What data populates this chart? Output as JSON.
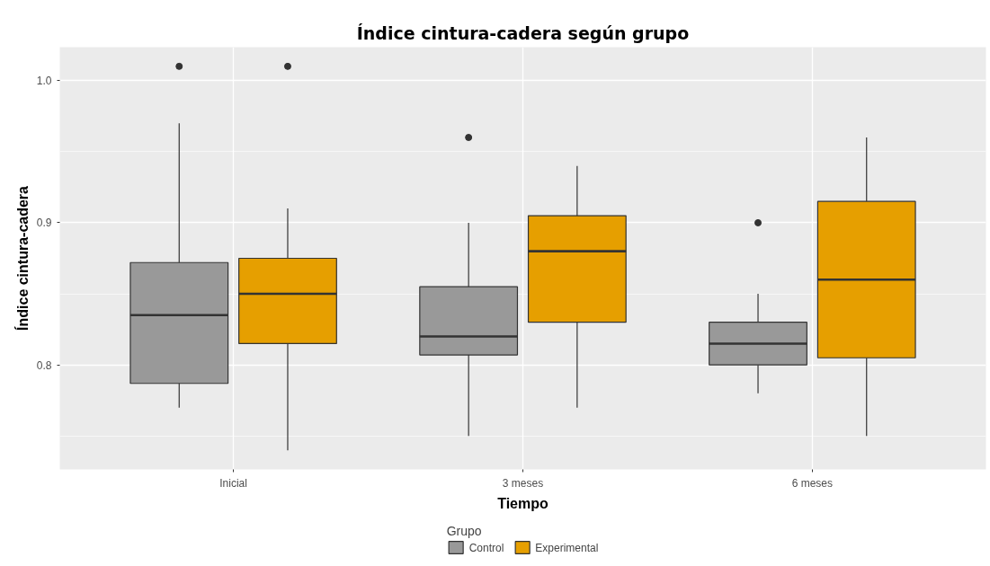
{
  "chart_data": {
    "type": "box",
    "title": "Índice cintura-cadera según grupo",
    "xlabel": "Tiempo",
    "ylabel": "Índice cintura-cadera",
    "legend_title": "Grupo",
    "categories": [
      "Inicial",
      "3 meses",
      "6 meses"
    ],
    "ylim": [
      0.7265,
      1.0235
    ],
    "yticks": [
      0.8,
      0.9,
      {
        "value": 1,
        "label": "1.0"
      }
    ],
    "grid": true,
    "legend": "bottom",
    "series": [
      {
        "name": "Control",
        "color": "#999999",
        "boxes": [
          {
            "low": 0.77,
            "q1": 0.787,
            "median": 0.835,
            "q3": 0.872,
            "high": 0.97,
            "outliers": [
              1.01
            ]
          },
          {
            "low": 0.75,
            "q1": 0.807,
            "median": 0.82,
            "q3": 0.855,
            "high": 0.9,
            "outliers": [
              0.96
            ]
          },
          {
            "low": 0.78,
            "q1": 0.8,
            "median": 0.815,
            "q3": 0.83,
            "high": 0.85,
            "outliers": [
              0.9
            ]
          }
        ]
      },
      {
        "name": "Experimental",
        "color": "#e69f00",
        "boxes": [
          {
            "low": 0.74,
            "q1": 0.815,
            "median": 0.85,
            "q3": 0.875,
            "high": 0.91,
            "outliers": [
              1.01
            ]
          },
          {
            "low": 0.77,
            "q1": 0.83,
            "median": 0.88,
            "q3": 0.905,
            "high": 0.94
          },
          {
            "low": 0.75,
            "q1": 0.805,
            "median": 0.86,
            "q3": 0.915,
            "high": 0.96
          }
        ]
      }
    ]
  }
}
